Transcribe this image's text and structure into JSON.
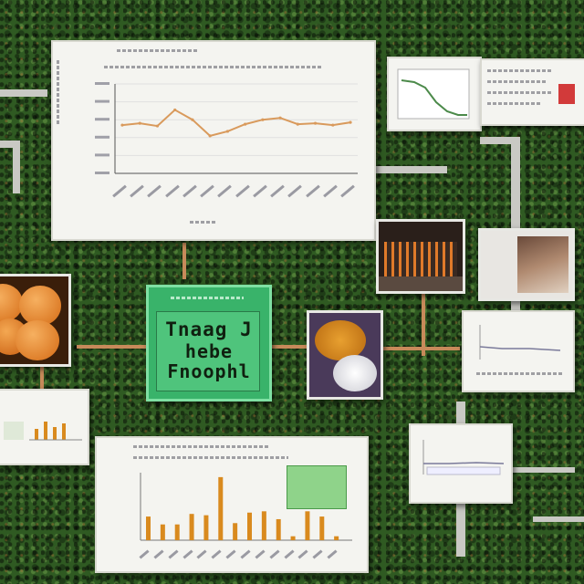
{
  "scene": {
    "description_type": "collage",
    "palette": {
      "background": "#2f5a22",
      "panel": "#f4f4f0",
      "sign": "#39b36a",
      "line": "#d99a5c",
      "bar": "#d98a1e",
      "orange": "#e8872a"
    }
  },
  "sign": {
    "line1": "Tnaag J",
    "line2": "hebe",
    "line3": "Fnoophl"
  },
  "line_chart": {
    "chart_data": {
      "type": "line",
      "x": [
        1,
        2,
        3,
        4,
        5,
        6,
        7,
        8,
        9,
        10,
        11,
        12,
        13,
        14
      ],
      "values": [
        54,
        56,
        53,
        71,
        60,
        42,
        47,
        55,
        60,
        62,
        55,
        56,
        54,
        57
      ]
    }
  },
  "bar_chart": {
    "chart_data": {
      "type": "bar",
      "x": [
        1,
        2,
        3,
        4,
        5,
        6,
        7,
        8,
        9,
        10,
        11,
        12,
        13,
        14
      ],
      "values": [
        18,
        12,
        12,
        20,
        19,
        48,
        13,
        21,
        22,
        16,
        3,
        22,
        18,
        3
      ]
    }
  }
}
